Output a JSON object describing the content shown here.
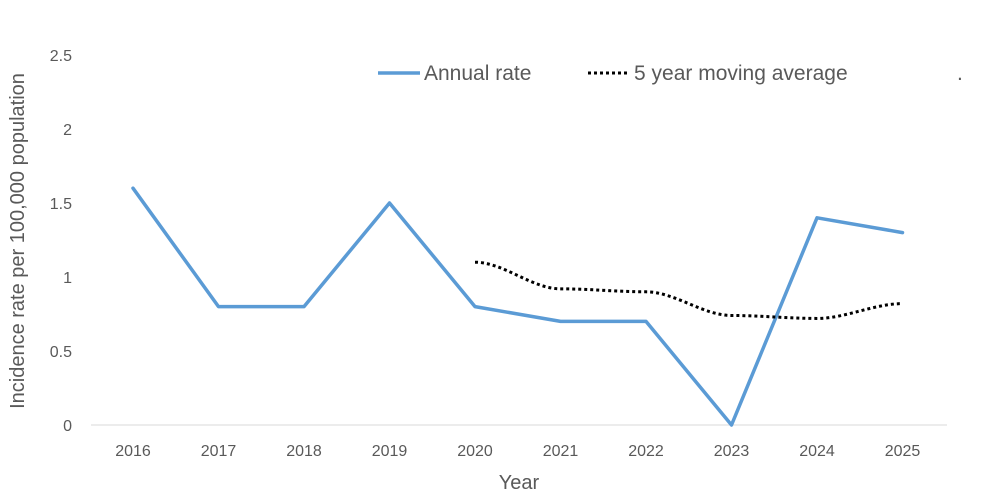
{
  "chart_data": {
    "type": "line",
    "title": "",
    "xlabel": "Year",
    "ylabel": "Incidence rate per 100,000 population",
    "categories": [
      "2016",
      "2017",
      "2018",
      "2019",
      "2020",
      "2021",
      "2022",
      "2023",
      "2024",
      "2025"
    ],
    "ylim": [
      0,
      2.5
    ],
    "yticks": [
      "0",
      "0.5",
      "1",
      "1.5",
      "2",
      "2.5"
    ],
    "grid": false,
    "legend_position": "top",
    "series": [
      {
        "name": "Annual rate",
        "style": "solid",
        "color": "#5B9BD5",
        "values": [
          1.6,
          0.8,
          0.8,
          1.5,
          0.8,
          0.7,
          0.7,
          0.0,
          1.4,
          1.3
        ]
      },
      {
        "name": "5 year moving average",
        "style": "dotted",
        "color": "#000000",
        "values": [
          null,
          null,
          null,
          null,
          1.1,
          0.92,
          0.9,
          0.74,
          0.72,
          0.82
        ]
      }
    ],
    "legend_extra_text": "."
  }
}
